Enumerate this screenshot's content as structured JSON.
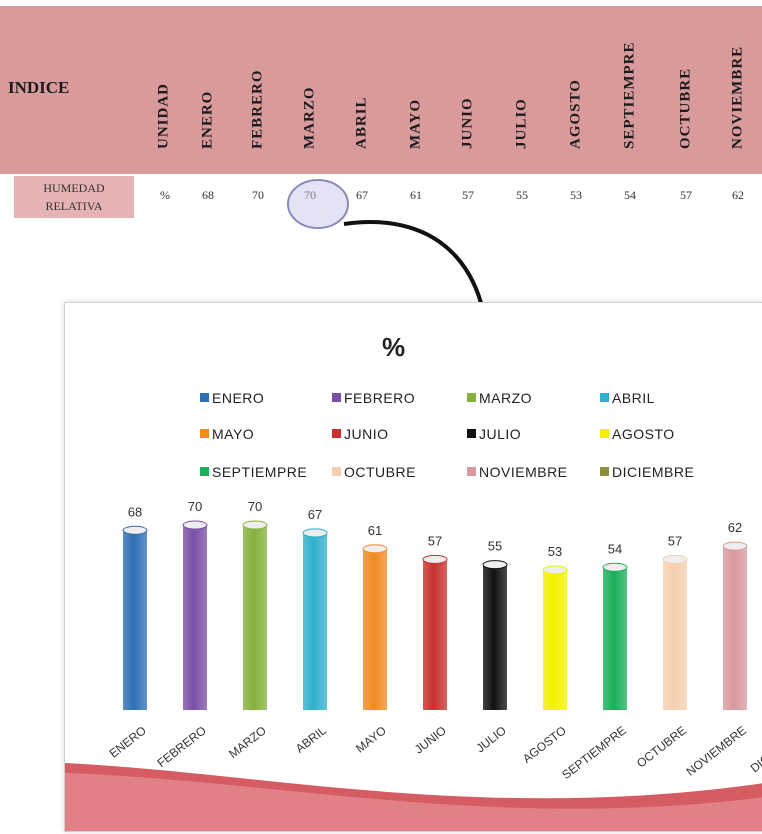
{
  "table": {
    "header_indice": "INDICE",
    "header_unidad": "UNIDAD",
    "months": [
      "ENERO",
      "FEBRERO",
      "MARZO",
      "ABRIL",
      "MAYO",
      "JUNIO",
      "JULIO",
      "AGOSTO",
      "SEPTIEMPRE",
      "OCTUBRE",
      "NOVIEMBRE"
    ],
    "row_label_line1": "HUMEDAD",
    "row_label_line2": "RELATIVA",
    "row_unit": "%",
    "row_values": [
      "68",
      "70",
      "70",
      "67",
      "61",
      "57",
      "55",
      "53",
      "54",
      "57",
      "62"
    ]
  },
  "chart_data": {
    "type": "bar",
    "title": "%",
    "categories": [
      "ENERO",
      "FEBRERO",
      "MARZO",
      "ABRIL",
      "MAYO",
      "JUNIO",
      "JULIO",
      "AGOSTO",
      "SEPTIEMPRE",
      "OCTUBRE",
      "NOVIEMBRE",
      "DICIEMBRE"
    ],
    "values": [
      68,
      70,
      70,
      67,
      61,
      57,
      55,
      53,
      54,
      57,
      62,
      null
    ],
    "legend": [
      "ENERO",
      "FEBRERO",
      "MARZO",
      "ABRIL",
      "MAYO",
      "JUNIO",
      "JULIO",
      "AGOSTO",
      "SEPTIEMPRE",
      "OCTUBRE",
      "NOVIEMBRE",
      "DICIEMBRE"
    ],
    "colors": [
      "#2f6fb4",
      "#7b4fa6",
      "#86b03c",
      "#2fb0cc",
      "#f08a22",
      "#c9302c",
      "#111111",
      "#f5f000",
      "#19b05a",
      "#f6cfae",
      "#d99a9c",
      "#8a8f3c"
    ],
    "legend_position": "top",
    "grid": false
  }
}
